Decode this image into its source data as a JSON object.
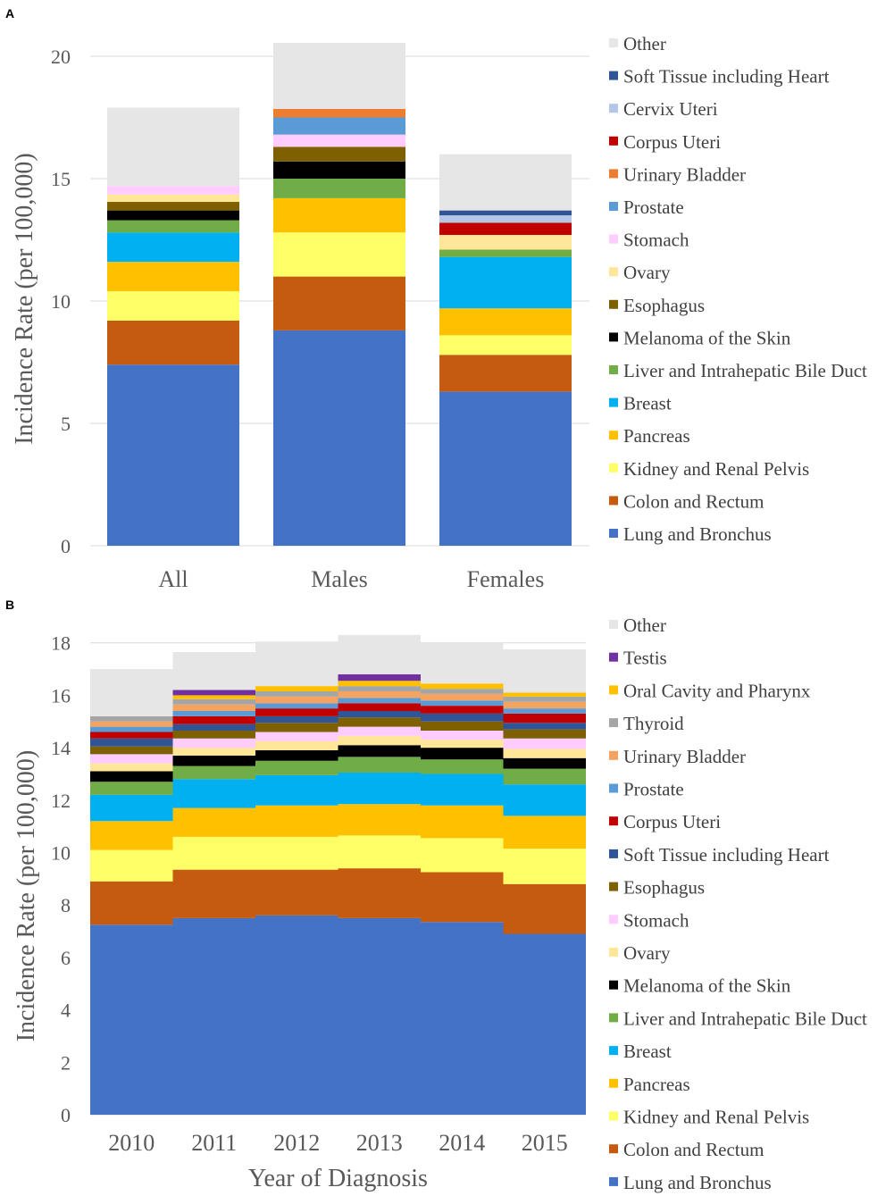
{
  "figure": {
    "panel_a_label": "A",
    "panel_b_label": "B"
  },
  "chart_data": [
    {
      "panel": "A",
      "type": "bar",
      "stacked": true,
      "title": "",
      "xlabel": "",
      "ylabel": "Incidence Rate (per 100,000)",
      "ylim": [
        0,
        22
      ],
      "yticks": [
        0,
        5,
        10,
        15,
        20
      ],
      "grid": true,
      "legend_position": "right",
      "categories": [
        "All",
        "Males",
        "Females"
      ],
      "series": [
        {
          "name": "Lung and Bronchus",
          "color": "#4472C4",
          "values": [
            7.4,
            8.8,
            6.3
          ]
        },
        {
          "name": "Colon and Rectum",
          "color": "#C55A11",
          "values": [
            1.8,
            2.2,
            1.5
          ]
        },
        {
          "name": "Kidney and Renal Pelvis",
          "color": "#FFFF66",
          "values": [
            1.2,
            1.8,
            0.8
          ]
        },
        {
          "name": "Pancreas",
          "color": "#FFC000",
          "values": [
            1.2,
            1.4,
            1.1
          ]
        },
        {
          "name": "Breast",
          "color": "#00B0F0",
          "values": [
            1.2,
            0,
            2.1
          ]
        },
        {
          "name": "Liver and Intrahepatic Bile Duct",
          "color": "#70AD47",
          "values": [
            0.5,
            0.8,
            0.3
          ]
        },
        {
          "name": "Melanoma of the Skin",
          "color": "#000000",
          "values": [
            0.4,
            0.7,
            0
          ]
        },
        {
          "name": "Esophagus",
          "color": "#7F6000",
          "values": [
            0.35,
            0.6,
            0
          ]
        },
        {
          "name": "Ovary",
          "color": "#FFE699",
          "values": [
            0.3,
            0,
            0.6
          ]
        },
        {
          "name": "Stomach",
          "color": "#FFCCFF",
          "values": [
            0.35,
            0.5,
            0
          ]
        },
        {
          "name": "Prostate",
          "color": "#5B9BD5",
          "values": [
            0,
            0.7,
            0
          ]
        },
        {
          "name": "Urinary Bladder",
          "color": "#ED7D31",
          "values": [
            0,
            0.35,
            0
          ]
        },
        {
          "name": "Corpus Uteri",
          "color": "#C00000",
          "values": [
            0,
            0,
            0.5
          ]
        },
        {
          "name": "Cervix Uteri",
          "color": "#B4C7E7",
          "values": [
            0,
            0,
            0.3
          ]
        },
        {
          "name": "Soft Tissue including Heart",
          "color": "#2F5597",
          "values": [
            0,
            0,
            0.2
          ]
        },
        {
          "name": "Other",
          "color": "#E7E6E6",
          "values": [
            3.2,
            2.7,
            2.3
          ]
        }
      ]
    },
    {
      "panel": "B",
      "type": "area",
      "stacked": true,
      "step": true,
      "title": "",
      "xlabel": "Year of Diagnosis",
      "ylabel": "Incidence Rate (per 100,000)",
      "ylim": [
        0,
        18.5
      ],
      "yticks": [
        0,
        2,
        4,
        6,
        8,
        10,
        12,
        14,
        16,
        18
      ],
      "grid": true,
      "legend_position": "right",
      "categories": [
        "2010",
        "2011",
        "2012",
        "2013",
        "2014",
        "2015"
      ],
      "series": [
        {
          "name": "Lung and Bronchus",
          "color": "#4472C4",
          "values": [
            7.25,
            7.5,
            7.6,
            7.5,
            7.35,
            6.9
          ]
        },
        {
          "name": "Colon and Rectum",
          "color": "#C55A11",
          "values": [
            1.65,
            1.85,
            1.75,
            1.9,
            1.9,
            1.9
          ]
        },
        {
          "name": "Kidney and Renal Pelvis",
          "color": "#FFFF66",
          "values": [
            1.2,
            1.25,
            1.25,
            1.25,
            1.3,
            1.35
          ]
        },
        {
          "name": "Pancreas",
          "color": "#FFC000",
          "values": [
            1.1,
            1.1,
            1.2,
            1.2,
            1.25,
            1.25
          ]
        },
        {
          "name": "Breast",
          "color": "#00B0F0",
          "values": [
            1.0,
            1.1,
            1.15,
            1.2,
            1.2,
            1.2
          ]
        },
        {
          "name": "Liver and Intrahepatic Bile Duct",
          "color": "#70AD47",
          "values": [
            0.5,
            0.5,
            0.55,
            0.6,
            0.55,
            0.6
          ]
        },
        {
          "name": "Melanoma of the Skin",
          "color": "#000000",
          "values": [
            0.4,
            0.4,
            0.4,
            0.45,
            0.45,
            0.4
          ]
        },
        {
          "name": "Ovary",
          "color": "#FFE699",
          "values": [
            0.3,
            0.3,
            0.35,
            0.35,
            0.3,
            0.35
          ]
        },
        {
          "name": "Stomach",
          "color": "#FFCCFF",
          "values": [
            0.35,
            0.35,
            0.35,
            0.35,
            0.35,
            0.4
          ]
        },
        {
          "name": "Esophagus",
          "color": "#7F6000",
          "values": [
            0.3,
            0.3,
            0.35,
            0.35,
            0.35,
            0.35
          ]
        },
        {
          "name": "Soft Tissue including Heart",
          "color": "#2F5597",
          "values": [
            0.3,
            0.25,
            0.25,
            0.25,
            0.3,
            0.25
          ]
        },
        {
          "name": "Corpus Uteri",
          "color": "#C00000",
          "values": [
            0.25,
            0.3,
            0.3,
            0.3,
            0.3,
            0.35
          ]
        },
        {
          "name": "Prostate",
          "color": "#5B9BD5",
          "values": [
            0.2,
            0.2,
            0.2,
            0.2,
            0.2,
            0.2
          ]
        },
        {
          "name": "Urinary Bladder",
          "color": "#F4A460",
          "values": [
            0.2,
            0.25,
            0.25,
            0.25,
            0.25,
            0.25
          ]
        },
        {
          "name": "Thyroid",
          "color": "#A5A5A5",
          "values": [
            0.2,
            0.2,
            0.2,
            0.2,
            0.2,
            0.2
          ]
        },
        {
          "name": "Oral Cavity and Pharynx",
          "color": "#FFC000",
          "values": [
            0,
            0.15,
            0.2,
            0.2,
            0.2,
            0.15
          ]
        },
        {
          "name": "Testis",
          "color": "#7030A0",
          "values": [
            0,
            0.2,
            0,
            0.25,
            0,
            0
          ]
        },
        {
          "name": "Other",
          "color": "#E7E6E6",
          "values": [
            1.8,
            1.45,
            1.7,
            1.5,
            1.55,
            1.65
          ]
        }
      ]
    }
  ]
}
